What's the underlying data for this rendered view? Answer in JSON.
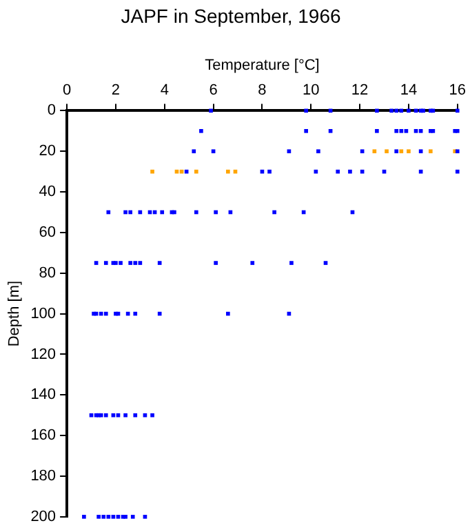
{
  "chart_data": {
    "type": "scatter",
    "title": "JAPF in September, 1966",
    "xlabel": "Temperature [°C]",
    "ylabel": "Depth [m]",
    "xlim": [
      0,
      16
    ],
    "xticks": [
      0,
      2,
      4,
      6,
      8,
      10,
      12,
      14,
      16
    ],
    "ylim": [
      200,
      0
    ],
    "yticks": [
      0,
      20,
      40,
      60,
      80,
      100,
      120,
      140,
      160,
      180,
      200
    ],
    "grid": false,
    "legend": false,
    "marker": "square",
    "series": [
      {
        "color": "#0000ff",
        "x": [
          5.9,
          9.8,
          10.8,
          12.7,
          13.3,
          13.5,
          13.7,
          14.0,
          14.3,
          14.5,
          14.6,
          14.9,
          15.0,
          16.0,
          5.5,
          9.8,
          10.8,
          12.7,
          13.5,
          13.7,
          13.9,
          14.3,
          14.5,
          14.9,
          15.0,
          15.9,
          16.0,
          5.2,
          6.0,
          9.1,
          10.3,
          12.1,
          13.5,
          14.5,
          16.0,
          4.9,
          8.0,
          8.3,
          10.2,
          11.1,
          11.6,
          12.1,
          13.0,
          14.5,
          16.0,
          1.7,
          2.4,
          2.6,
          3.0,
          3.4,
          3.6,
          3.9,
          4.3,
          4.4,
          5.3,
          6.1,
          6.7,
          8.5,
          9.7,
          11.7,
          1.2,
          1.6,
          1.9,
          2.0,
          2.2,
          2.6,
          2.8,
          3.0,
          3.8,
          6.1,
          7.6,
          9.2,
          10.6,
          1.1,
          1.2,
          1.4,
          1.6,
          2.0,
          2.1,
          2.5,
          2.8,
          3.8,
          6.6,
          9.1,
          1.0,
          1.2,
          1.3,
          1.4,
          1.6,
          1.9,
          2.1,
          2.4,
          2.8,
          3.2,
          3.5,
          0.7,
          1.3,
          1.5,
          1.7,
          1.9,
          2.1,
          2.3,
          2.4,
          2.7,
          3.2
        ],
        "values": [
          0,
          0,
          0,
          0,
          0,
          0,
          0,
          0,
          0,
          0,
          0,
          0,
          0,
          0,
          10,
          10,
          10,
          10,
          10,
          10,
          10,
          10,
          10,
          10,
          10,
          10,
          10,
          20,
          20,
          20,
          20,
          20,
          20,
          20,
          20,
          30,
          30,
          30,
          30,
          30,
          30,
          30,
          30,
          30,
          30,
          50,
          50,
          50,
          50,
          50,
          50,
          50,
          50,
          50,
          50,
          50,
          50,
          50,
          50,
          50,
          75,
          75,
          75,
          75,
          75,
          75,
          75,
          75,
          75,
          75,
          75,
          75,
          75,
          100,
          100,
          100,
          100,
          100,
          100,
          100,
          100,
          100,
          100,
          100,
          150,
          150,
          150,
          150,
          150,
          150,
          150,
          150,
          150,
          150,
          150,
          200,
          200,
          200,
          200,
          200,
          200,
          200,
          200,
          200,
          200
        ]
      },
      {
        "color": "#ffa500",
        "x": [
          12.6,
          13.1,
          13.7,
          14.0,
          14.9,
          15.9,
          3.5,
          4.5,
          4.7,
          5.3,
          6.6,
          6.9
        ],
        "values": [
          20,
          20,
          20,
          20,
          20,
          20,
          30,
          30,
          30,
          30,
          30,
          30
        ]
      }
    ]
  }
}
